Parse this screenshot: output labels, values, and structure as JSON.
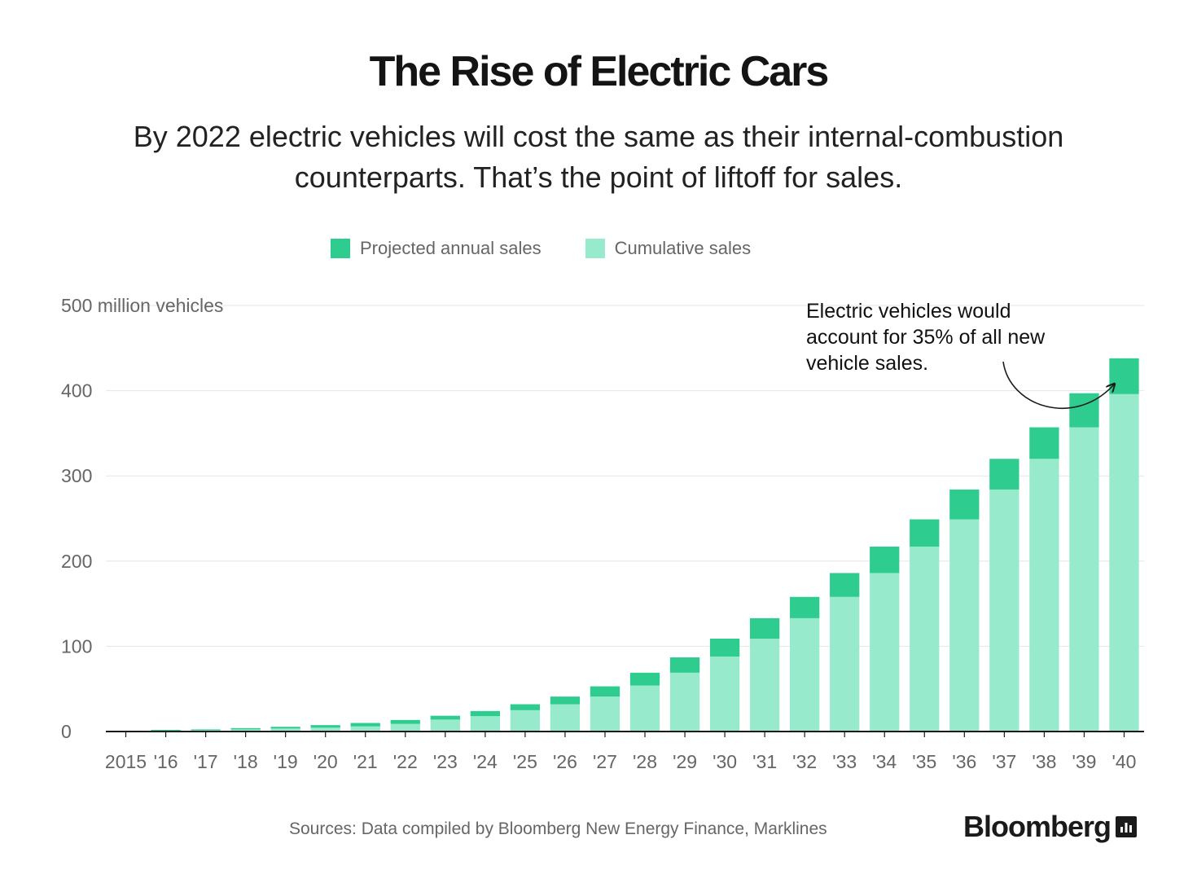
{
  "title": "The Rise of Electric Cars",
  "subtitle": "By 2022 electric vehicles will cost the same as their internal-combustion counterparts. That’s the point of liftoff for sales.",
  "colors": {
    "annual": "#2ecc8f",
    "cumulative": "#97ebcc",
    "axis": "#1a1a1a",
    "grid": "#e6e6e6",
    "tick_text": "#666666"
  },
  "chart_data": {
    "type": "bar",
    "stacked": true,
    "categories": [
      "2015",
      "'16",
      "'17",
      "'18",
      "'19",
      "'20",
      "'21",
      "'22",
      "'23",
      "'24",
      "'25",
      "'26",
      "'27",
      "'28",
      "'29",
      "'30",
      "'31",
      "'32",
      "'33",
      "'34",
      "'35",
      "'36",
      "'37",
      "'38",
      "'39",
      "'40"
    ],
    "series": [
      {
        "name": "Cumulative sales",
        "values": [
          0.5,
          1,
          1.5,
          2.5,
          3.5,
          4.5,
          6,
          9,
          14,
          18,
          25,
          32,
          41,
          54,
          69,
          88,
          109,
          133,
          158,
          186,
          217,
          249,
          284,
          320,
          357,
          396
        ]
      },
      {
        "name": "Projected annual sales",
        "values": [
          0.5,
          1,
          1,
          1.5,
          2,
          3,
          4,
          4.5,
          4.5,
          6,
          7,
          9,
          12,
          15,
          18,
          21,
          24,
          25,
          28,
          31,
          32,
          35,
          36,
          37,
          40,
          42
        ]
      }
    ],
    "ylabel": "500 million vehicles",
    "yticks": [
      "0",
      "100",
      "200",
      "300",
      "400",
      "500 million vehicles"
    ],
    "ylim": [
      0,
      500
    ],
    "grid": true,
    "legend": "top-center",
    "annotation": "Electric vehicles would account for 35% of all new vehicle sales."
  },
  "source": "Sources: Data compiled by Bloomberg New Energy Finance, Marklines",
  "logo": "Bloomberg"
}
